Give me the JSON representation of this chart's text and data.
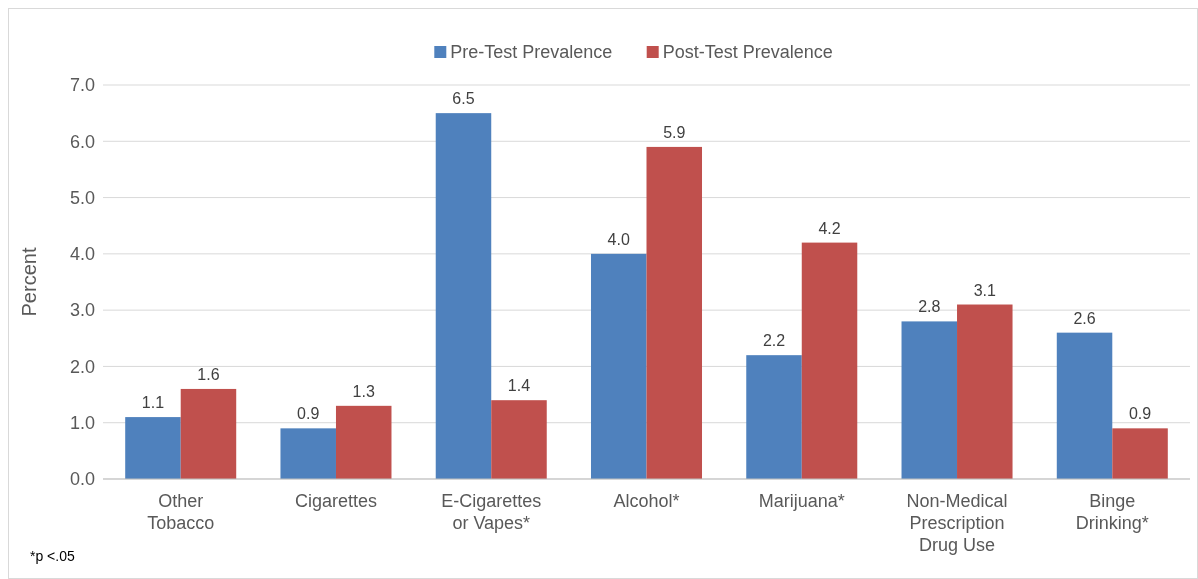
{
  "chart_data": {
    "type": "bar",
    "ylabel": "Percent",
    "categories": [
      "Other Tobacco",
      "Cigarettes",
      "E-Cigarettes or Vapes*",
      "Alcohol*",
      "Marijuana*",
      "Non-Medical Prescription Drug Use",
      "Binge Drinking*"
    ],
    "series": [
      {
        "name": "Pre-Test Prevalence",
        "color": "#4f81bd",
        "values": [
          1.1,
          0.9,
          6.5,
          4.0,
          2.2,
          2.8,
          2.6
        ],
        "value_labels": [
          "1.1",
          "0.9",
          "6.5",
          "4.0",
          "2.2",
          "2.8",
          "2.6"
        ]
      },
      {
        "name": "Post-Test Prevalence",
        "color": "#c0504d",
        "values": [
          1.6,
          1.3,
          1.4,
          5.9,
          4.2,
          3.1,
          0.9
        ],
        "value_labels": [
          "1.6",
          "1.3",
          "1.4",
          "5.9",
          "4.2",
          "3.1",
          "0.9"
        ]
      }
    ],
    "ylim": [
      0,
      7
    ],
    "yticks": [
      {
        "value": 0,
        "label": "0.0"
      },
      {
        "value": 1,
        "label": "1.0"
      },
      {
        "value": 2,
        "label": "2.0"
      },
      {
        "value": 3,
        "label": "3.0"
      },
      {
        "value": 4,
        "label": "4.0"
      },
      {
        "value": 5,
        "label": "5.0"
      },
      {
        "value": 6,
        "label": "6.0"
      },
      {
        "value": 7,
        "label": "7.0"
      }
    ],
    "grid": true,
    "legend": "top",
    "annotations": [
      "*p <.05"
    ]
  }
}
